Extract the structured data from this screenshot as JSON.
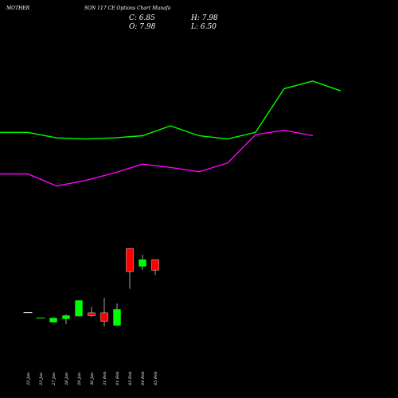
{
  "header": {
    "symbol": "MOTHERSON",
    "title_segments": [
      "MOTHER",
      "SON  117 CE Options  Chart Munafa"
    ],
    "watermark": "Munafa",
    "ohlc": {
      "c": "C: 6.85",
      "h": "H: 7.98",
      "o": "O: 7.98",
      "l": "L: 6.50"
    }
  },
  "colors": {
    "background": "#000000",
    "up": "#00ff00",
    "down": "#ff0000",
    "upper_line": "#00ff00",
    "lower_line": "#ff00ff",
    "text": "#ffffff"
  },
  "chart_data": [
    {
      "type": "candlestick",
      "title": "MOTHERSON 117 CE Options Chart",
      "x": [
        "22 Jan",
        "23 Jan",
        "27 Jan",
        "28 Jan",
        "29 Jan",
        "30 Jan",
        "31 Feb",
        "01 Feb",
        "03 Feb",
        "04 Feb",
        "05 Feb"
      ],
      "candles": [
        {
          "x": "22 Jan",
          "o": 2.12,
          "h": 2.12,
          "l": 2.12,
          "c": 2.12,
          "dir": "flat"
        },
        {
          "x": "23 Jan",
          "o": 1.62,
          "h": 1.62,
          "l": 1.62,
          "c": 1.62,
          "dir": "flat"
        },
        {
          "x": "27 Jan",
          "o": 1.23,
          "h": 1.68,
          "l": 1.23,
          "c": 1.62,
          "dir": "up"
        },
        {
          "x": "28 Jan",
          "o": 1.55,
          "h": 1.94,
          "l": 1.06,
          "c": 1.84,
          "dir": "up"
        },
        {
          "x": "29 Jan",
          "o": 1.8,
          "h": 3.26,
          "l": 1.74,
          "c": 3.22,
          "dir": "up"
        },
        {
          "x": "30 Jan",
          "o": 2.1,
          "h": 2.63,
          "l": 1.7,
          "c": 1.84,
          "dir": "down"
        },
        {
          "x": "31 Feb",
          "o": 2.1,
          "h": 3.47,
          "l": 0.84,
          "c": 1.31,
          "dir": "down"
        },
        {
          "x": "01 Feb",
          "o": 0.94,
          "h": 2.94,
          "l": 0.89,
          "c": 2.42,
          "dir": "up"
        },
        {
          "x": "03 Feb",
          "o": 7.98,
          "h": 7.98,
          "l": 4.3,
          "c": 5.87,
          "dir": "down"
        },
        {
          "x": "04 Feb",
          "o": 6.35,
          "h": 7.41,
          "l": 6.01,
          "c": 6.96,
          "dir": "up"
        },
        {
          "x": "05 Feb",
          "o": 6.96,
          "h": 6.96,
          "l": 5.54,
          "c": 5.99,
          "dir": "down"
        }
      ],
      "ylim": [
        -0.6,
        27.8
      ],
      "overlays": [
        {
          "color": "#00ff00",
          "values": [
            18.6,
            18.6,
            18.1,
            18.0,
            18.1,
            18.3,
            19.2,
            18.3,
            18.0,
            18.6,
            22.6,
            23.3,
            22.4
          ]
        },
        {
          "color": "#ff00ff",
          "values": [
            14.8,
            14.8,
            13.7,
            14.2,
            14.9,
            15.7,
            15.4,
            15.0,
            15.8,
            18.4,
            18.8,
            18.3
          ]
        }
      ],
      "grid": false,
      "legend": "none"
    }
  ]
}
